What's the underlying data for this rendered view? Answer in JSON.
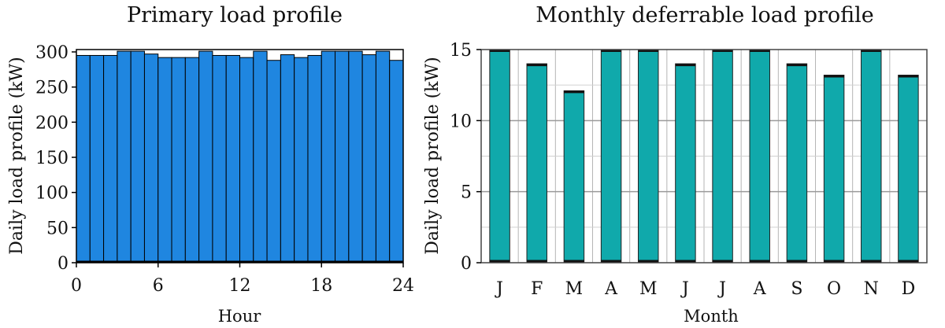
{
  "chart_data": [
    {
      "type": "bar",
      "title": "Primary load profile",
      "xlabel": "Hour",
      "ylabel": "Daily load profile (kW)",
      "ylim": [
        0,
        300
      ],
      "xlim": [
        0,
        24
      ],
      "x_ticks": [
        "0",
        "6",
        "12",
        "18",
        "24"
      ],
      "y_ticks": [
        "0",
        "50",
        "100",
        "150",
        "200",
        "250",
        "300"
      ],
      "categories": [
        "0",
        "1",
        "2",
        "3",
        "4",
        "5",
        "6",
        "7",
        "8",
        "9",
        "10",
        "11",
        "12",
        "13",
        "14",
        "15",
        "16",
        "17",
        "18",
        "19",
        "20",
        "21",
        "22",
        "23"
      ],
      "values": [
        295,
        295,
        295,
        301,
        301,
        297,
        292,
        292,
        292,
        301,
        295,
        295,
        292,
        301,
        288,
        296,
        292,
        295,
        301,
        301,
        301,
        296,
        301,
        288
      ],
      "color": "#1f86e0"
    },
    {
      "type": "bar",
      "title": "Monthly deferrable load profile",
      "xlabel": "Month",
      "ylabel": "Daily load profile (kW)",
      "ylim": [
        0,
        15
      ],
      "y_ticks": [
        "0",
        "5",
        "10",
        "15"
      ],
      "categories": [
        "J",
        "F",
        "M",
        "A",
        "M",
        "J",
        "J",
        "A",
        "S",
        "O",
        "N",
        "D"
      ],
      "values": [
        15,
        14,
        12.1,
        15,
        15,
        14,
        15,
        15,
        14,
        13.2,
        15,
        13.2
      ],
      "color": "#10a9ab"
    }
  ]
}
